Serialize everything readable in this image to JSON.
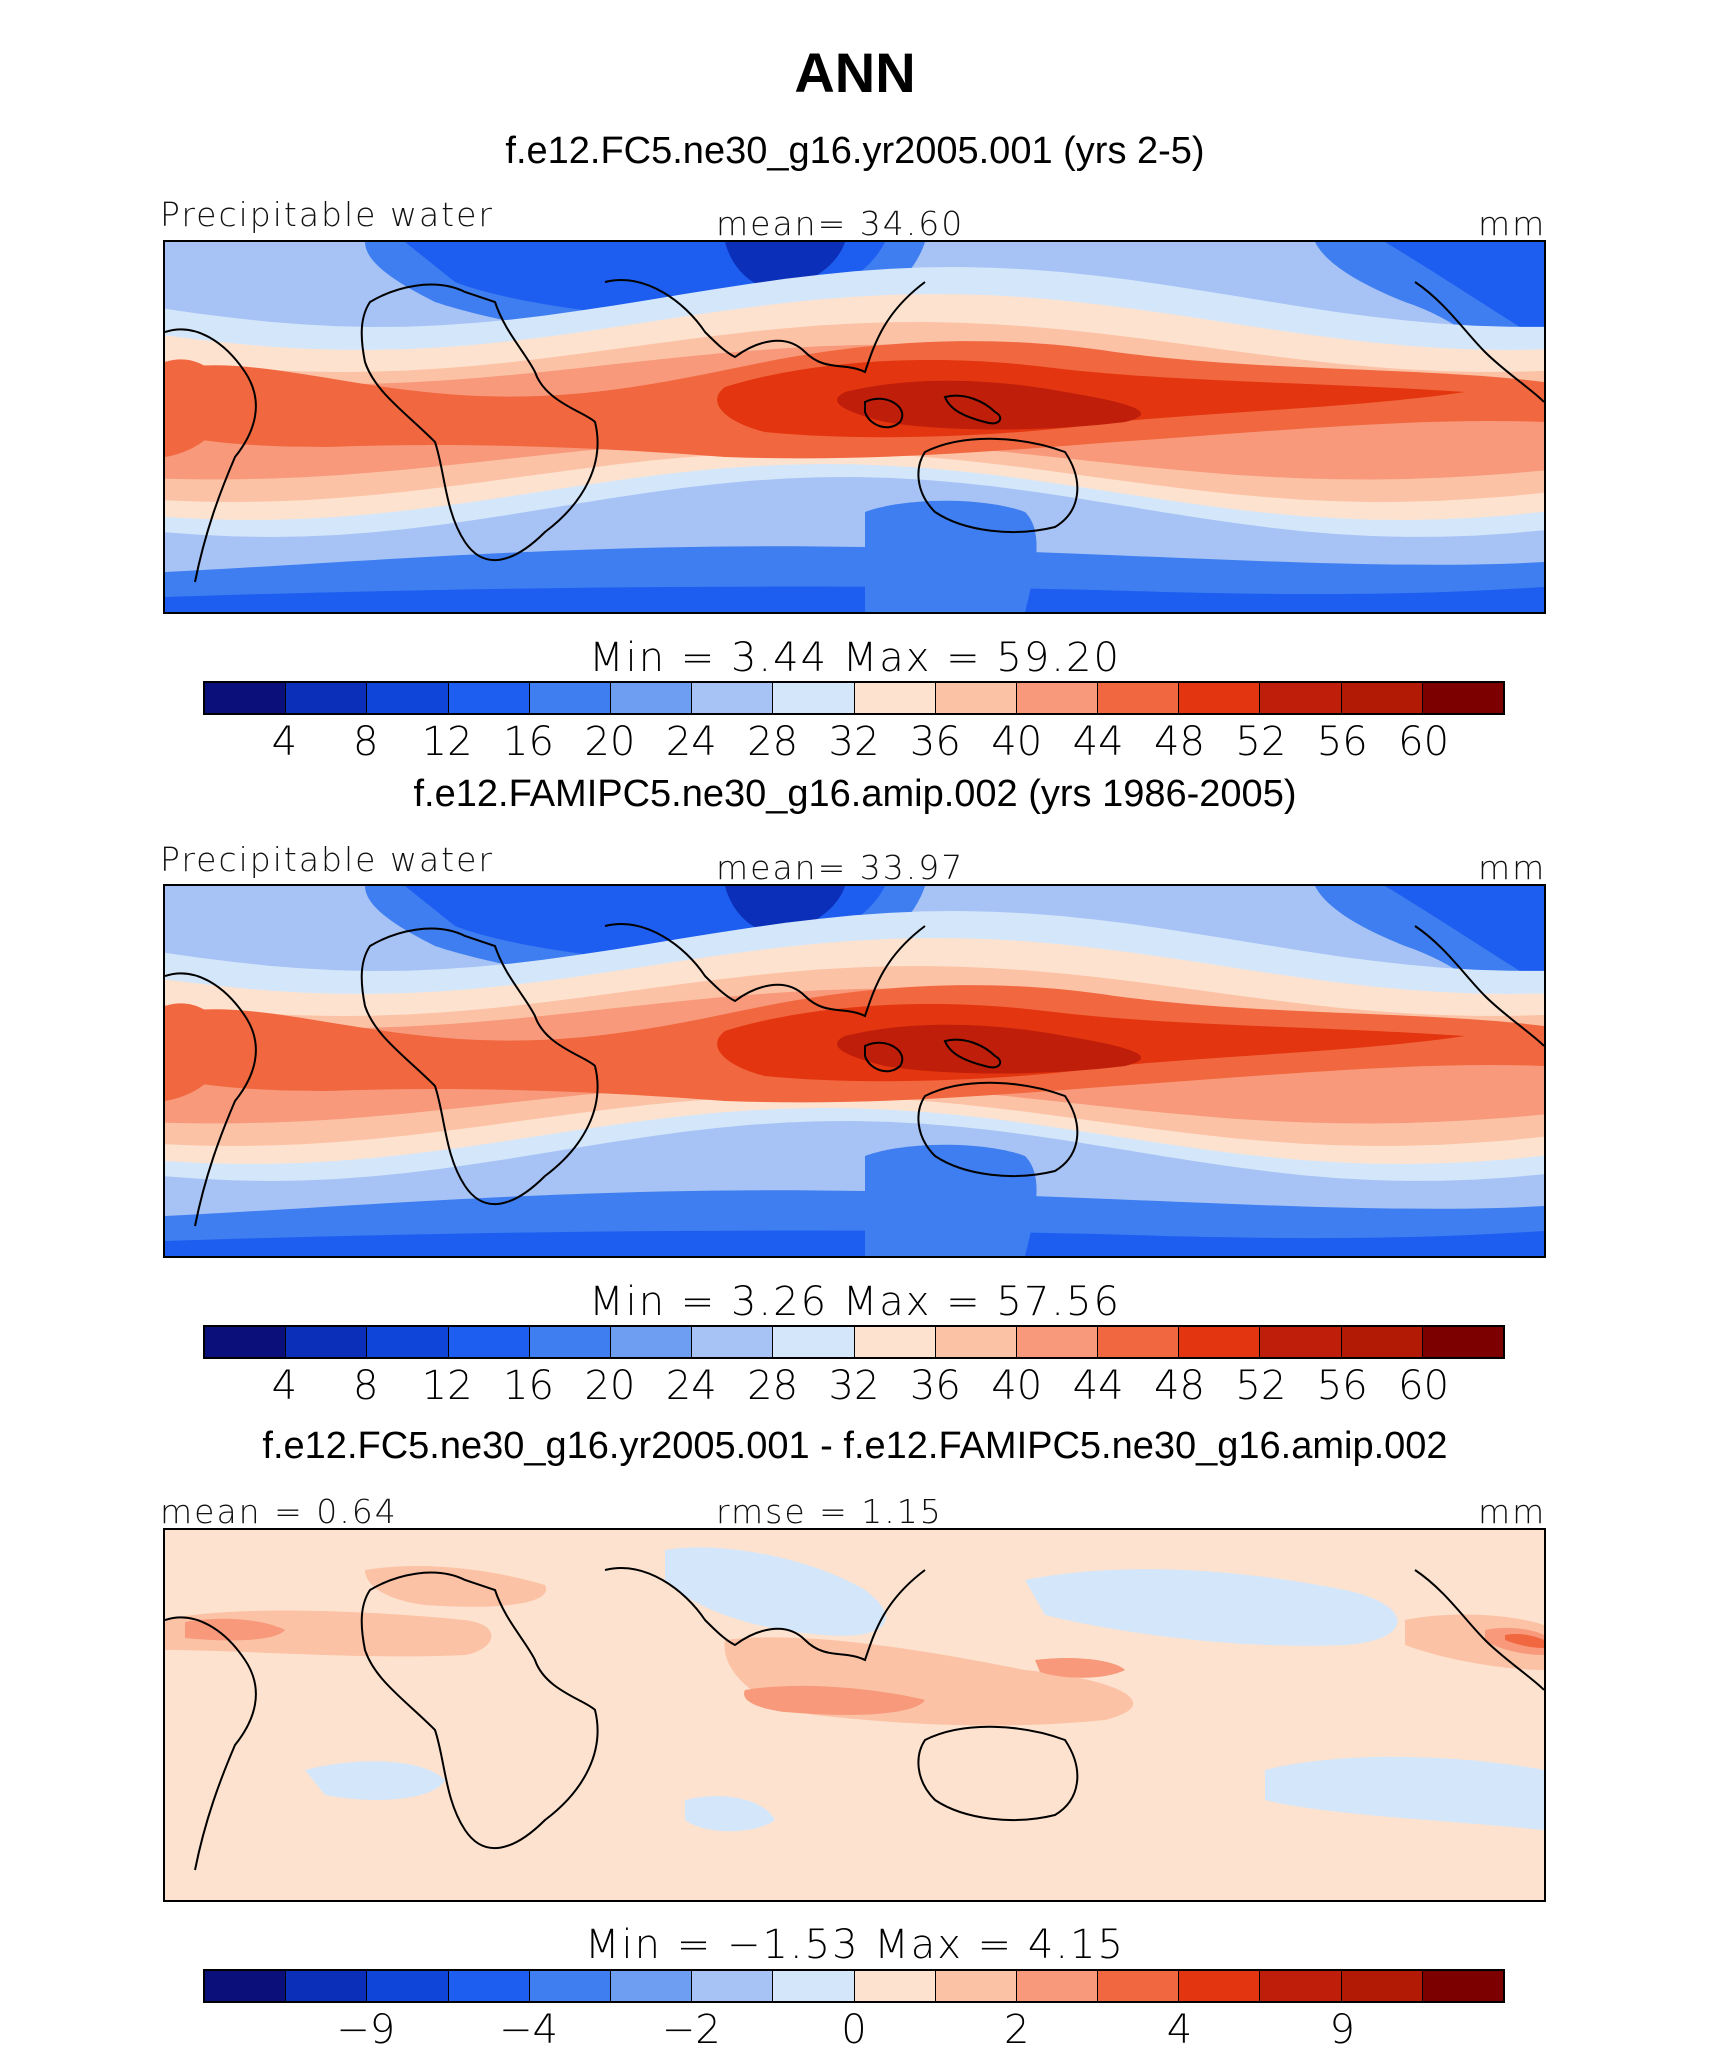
{
  "title": "ANN",
  "panels": [
    {
      "case_title": "f.e12.FC5.ne30_g16.yr2005.001 (yrs 2-5)",
      "left_label": "Precipitable water",
      "center_label": "mean=   34.60",
      "right_label": "mm",
      "minmax": "Min  =     3.44  Max  =    59.20",
      "kind": "field",
      "colorbar_ticks": [
        "4",
        "8",
        "12",
        "16",
        "20",
        "24",
        "28",
        "32",
        "36",
        "40",
        "44",
        "48",
        "52",
        "56",
        "60"
      ]
    },
    {
      "case_title": "f.e12.FAMIPC5.ne30_g16.amip.002 (yrs 1986-2005)",
      "left_label": "Precipitable water",
      "center_label": "mean=   33.97",
      "right_label": "mm",
      "minmax": "Min  =     3.26  Max  =    57.56",
      "kind": "field",
      "colorbar_ticks": [
        "4",
        "8",
        "12",
        "16",
        "20",
        "24",
        "28",
        "32",
        "36",
        "40",
        "44",
        "48",
        "52",
        "56",
        "60"
      ]
    },
    {
      "case_title": "f.e12.FC5.ne30_g16.yr2005.001 - f.e12.FAMIPC5.ne30_g16.amip.002",
      "left_label": "mean  =    0.64",
      "center_label": "rmse  =    1.15",
      "right_label": "mm",
      "minmax": "Min  =   −1.53  Max  =     4.15",
      "kind": "diff",
      "colorbar_ticks": [
        "−9",
        "−4",
        "−2",
        "0",
        "2",
        "4",
        "9"
      ]
    }
  ],
  "colors": {
    "palette": [
      "#0a0f7a",
      "#0b2fb8",
      "#0f45d8",
      "#1d5ef0",
      "#3f7ef0",
      "#6e9ef2",
      "#a7c3f5",
      "#d4e6fa",
      "#fde3cf",
      "#fbc2a6",
      "#f7997a",
      "#f1673f",
      "#e3350f",
      "#bf1e0a",
      "#b21a06",
      "#7c0000"
    ],
    "land_outline": "#000000"
  },
  "chart_data": [
    {
      "type": "heatmap",
      "title": "f.e12.FC5.ne30_g16.yr2005.001 (yrs 2-5)",
      "variable": "Precipitable water",
      "units": "mm",
      "mean": 34.6,
      "min": 3.44,
      "max": 59.2,
      "levels": [
        4,
        8,
        12,
        16,
        20,
        24,
        28,
        32,
        36,
        40,
        44,
        48,
        52,
        56,
        60
      ]
    },
    {
      "type": "heatmap",
      "title": "f.e12.FAMIPC5.ne30_g16.amip.002 (yrs 1986-2005)",
      "variable": "Precipitable water",
      "units": "mm",
      "mean": 33.97,
      "min": 3.26,
      "max": 57.56,
      "levels": [
        4,
        8,
        12,
        16,
        20,
        24,
        28,
        32,
        36,
        40,
        44,
        48,
        52,
        56,
        60
      ]
    },
    {
      "type": "heatmap",
      "title": "f.e12.FC5.ne30_g16.yr2005.001 - f.e12.FAMIPC5.ne30_g16.amip.002",
      "units": "mm",
      "mean": 0.64,
      "rmse": 1.15,
      "min": -1.53,
      "max": 4.15,
      "levels": [
        -9,
        -4,
        -2,
        0,
        2,
        4,
        9
      ]
    }
  ]
}
